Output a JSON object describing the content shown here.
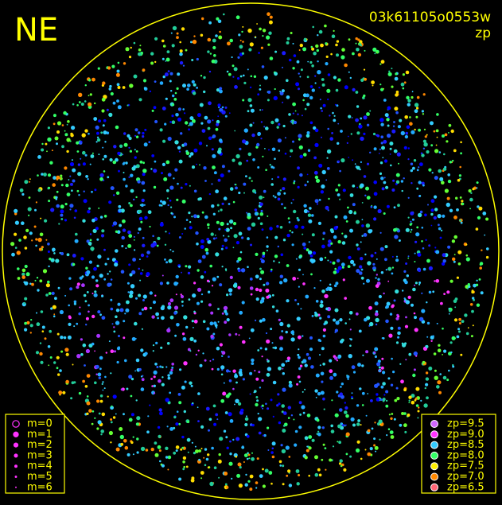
{
  "title": "NE",
  "image_id": "03k61105o0553w",
  "subtitle": "zp",
  "magnitude_legend": [
    "m=0",
    "m=1",
    "m=2",
    "m=3",
    "m=4",
    "m=5",
    "m=6"
  ],
  "zp_legend": {
    "labels": [
      "zp=9.5",
      "zp=9.0",
      "zp=8.5",
      "zp=8.0",
      "zp=7.5",
      "zp=7.0",
      "zp=6.5"
    ],
    "colors": [
      "#d066ff",
      "#ff33ff",
      "#33ccff",
      "#33ff66",
      "#ffee00",
      "#ff8800",
      "#ff6677"
    ]
  }
}
